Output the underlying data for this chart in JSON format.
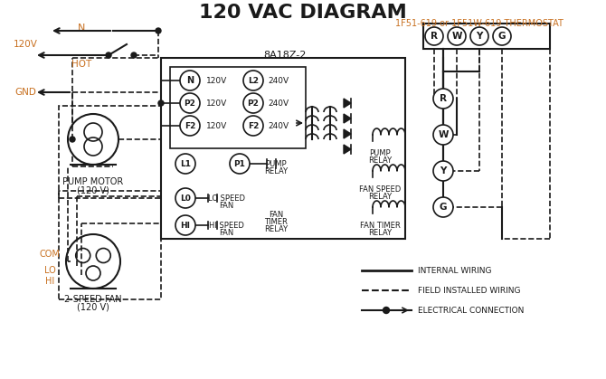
{
  "title": "120 VAC DIAGRAM",
  "title_color": "#1a1a1a",
  "title_fontsize": 16,
  "bg_color": "#ffffff",
  "thermostat_label": "1F51-619 or 1F51W-619 THERMOSTAT",
  "thermostat_label_color": "#c87020",
  "controller_label": "8A18Z-2",
  "terminals_R": "R",
  "terminals_W": "W",
  "terminals_Y": "Y",
  "terminals_G": "G",
  "legend_internal": "INTERNAL WIRING",
  "legend_field": "FIELD INSTALLED WIRING",
  "legend_elec": "ELECTRICAL CONNECTION",
  "orange_color": "#c87020",
  "line_color": "#1a1a1a"
}
